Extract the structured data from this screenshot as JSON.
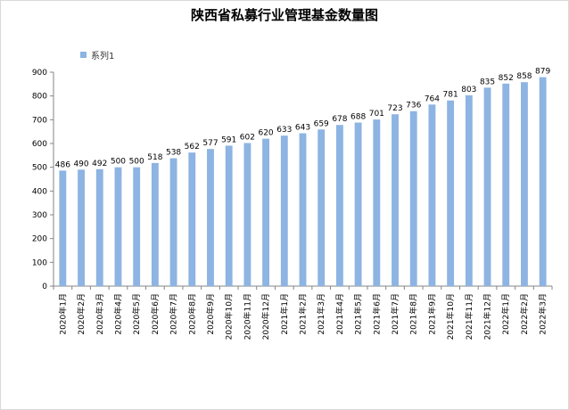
{
  "chart_data": {
    "type": "bar",
    "title": "陕西省私募行业管理基金数量图",
    "legend": [
      "系列1"
    ],
    "legend_position": "top-left",
    "bar_color": "#8db4e2",
    "categories": [
      "2020年1月",
      "2020年2月",
      "2020年3月",
      "2020年4月",
      "2020年5月",
      "2020年6月",
      "2020年7月",
      "2020年8月",
      "2020年9月",
      "2020年10月",
      "2020年11月",
      "2020年12月",
      "2021年1月",
      "2021年2月",
      "2021年3月",
      "2021年4月",
      "2021年5月",
      "2021年6月",
      "2021年7月",
      "2021年8月",
      "2021年9月",
      "2021年10月",
      "2021年11月",
      "2021年12月",
      "2022年1月",
      "2022年2月",
      "2022年3月"
    ],
    "series": [
      {
        "name": "系列1",
        "values": [
          486,
          490,
          492,
          500,
          500,
          518,
          538,
          562,
          577,
          591,
          602,
          620,
          633,
          643,
          659,
          678,
          688,
          701,
          723,
          736,
          764,
          781,
          803,
          835,
          852,
          858,
          879
        ]
      }
    ],
    "ylim": [
      0,
      900
    ],
    "yticks": [
      0,
      100,
      200,
      300,
      400,
      500,
      600,
      700,
      800,
      900
    ],
    "grid": false
  }
}
